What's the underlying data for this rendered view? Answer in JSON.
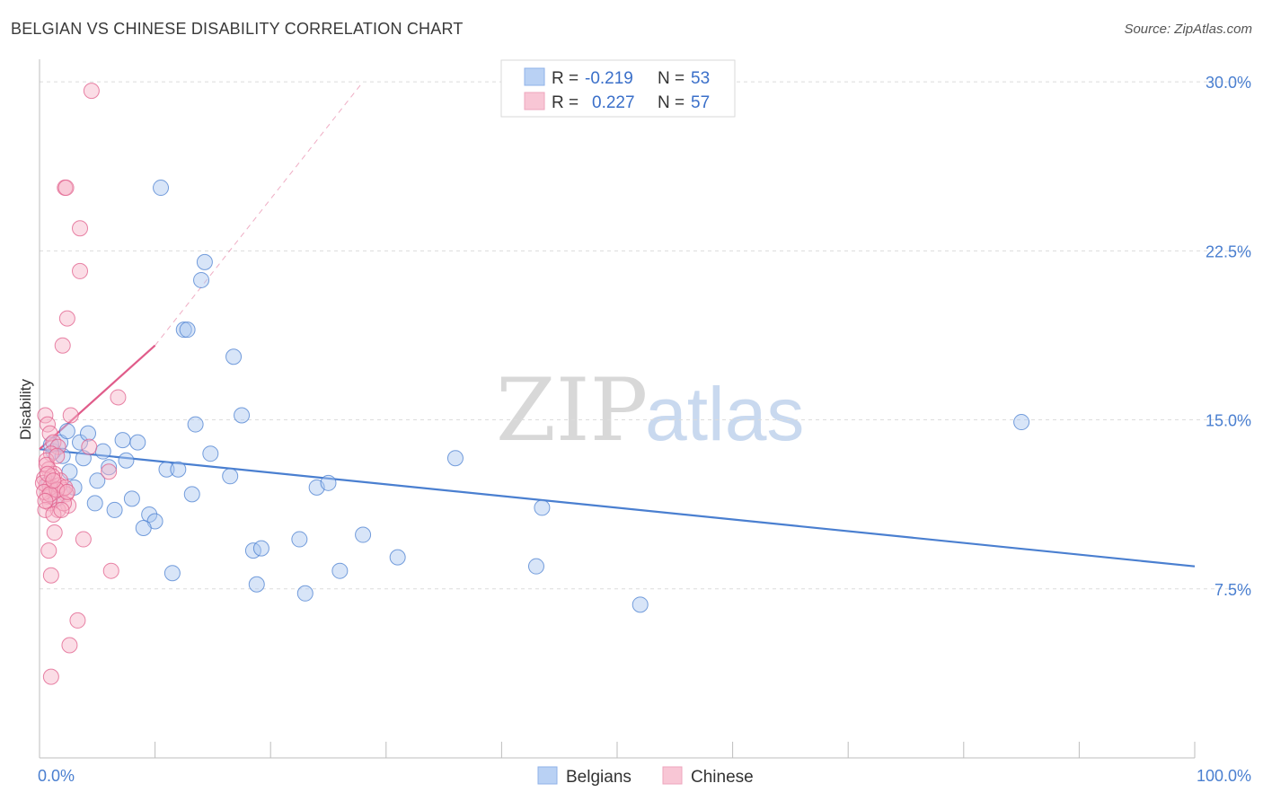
{
  "title": "BELGIAN VS CHINESE DISABILITY CORRELATION CHART",
  "source": "Source: ZipAtlas.com",
  "chart_data": {
    "type": "scatter",
    "ylabel": "Disability",
    "xlabel": "",
    "xlim": [
      0,
      100
    ],
    "ylim": [
      0,
      31
    ],
    "y_ticks": [
      {
        "value": 7.5,
        "label": "7.5%"
      },
      {
        "value": 15.0,
        "label": "15.0%"
      },
      {
        "value": 22.5,
        "label": "22.5%"
      },
      {
        "value": 30.0,
        "label": "30.0%"
      }
    ],
    "x_tick_labels": {
      "min": "0.0%",
      "max": "100.0%"
    },
    "grid": true,
    "legend_position": "top-center",
    "series": [
      {
        "name": "Belgians",
        "color": "#4a7fd0",
        "fill": "#a9c6f0",
        "r_label": "R =",
        "r_value": "-0.219",
        "n_label": "N =",
        "n_value": "53",
        "trend": {
          "x": [
            0,
            100
          ],
          "y": [
            13.7,
            8.5
          ],
          "dashed_to": null
        },
        "points": [
          [
            1.2,
            13.6
          ],
          [
            1.8,
            14.0
          ],
          [
            2.4,
            14.5
          ],
          [
            2.0,
            13.4
          ],
          [
            3.5,
            14.0
          ],
          [
            3.8,
            13.3
          ],
          [
            4.2,
            14.4
          ],
          [
            5.5,
            13.6
          ],
          [
            6.0,
            12.9
          ],
          [
            4.8,
            11.3
          ],
          [
            5.0,
            12.3
          ],
          [
            7.2,
            14.1
          ],
          [
            7.5,
            13.2
          ],
          [
            8.0,
            11.5
          ],
          [
            8.5,
            14.0
          ],
          [
            9.5,
            10.8
          ],
          [
            10.0,
            10.5
          ],
          [
            11.0,
            12.8
          ],
          [
            11.5,
            8.2
          ],
          [
            12.0,
            12.8
          ],
          [
            10.5,
            25.3
          ],
          [
            14.3,
            22.0
          ],
          [
            14.0,
            21.2
          ],
          [
            12.5,
            19.0
          ],
          [
            12.8,
            19.0
          ],
          [
            13.2,
            11.7
          ],
          [
            13.5,
            14.8
          ],
          [
            14.8,
            13.5
          ],
          [
            16.5,
            12.5
          ],
          [
            16.8,
            17.8
          ],
          [
            17.5,
            15.2
          ],
          [
            18.5,
            9.2
          ],
          [
            18.8,
            7.7
          ],
          [
            19.2,
            9.3
          ],
          [
            22.5,
            9.7
          ],
          [
            23.0,
            7.3
          ],
          [
            24.0,
            12.0
          ],
          [
            25.0,
            12.2
          ],
          [
            26.0,
            8.3
          ],
          [
            28.0,
            9.9
          ],
          [
            31.0,
            8.9
          ],
          [
            36.0,
            13.3
          ],
          [
            43.0,
            8.5
          ],
          [
            43.5,
            11.1
          ],
          [
            52.0,
            6.8
          ],
          [
            85.0,
            14.9
          ],
          [
            1.5,
            11.5
          ],
          [
            2.6,
            12.7
          ],
          [
            3.0,
            12.0
          ],
          [
            6.5,
            11.0
          ],
          [
            9.0,
            10.2
          ],
          [
            0.8,
            12.2
          ],
          [
            1.0,
            13.9
          ]
        ]
      },
      {
        "name": "Chinese",
        "color": "#e05c8a",
        "fill": "#f6b3c8",
        "r_label": "R =",
        "r_value": "0.227",
        "n_label": "N =",
        "n_value": "57",
        "trend": {
          "x": [
            0,
            10
          ],
          "y": [
            13.7,
            18.3
          ],
          "dashed_to": {
            "x": 28,
            "y": 30.0
          }
        },
        "points": [
          [
            4.5,
            29.6
          ],
          [
            2.2,
            25.3
          ],
          [
            2.3,
            25.3
          ],
          [
            3.5,
            23.5
          ],
          [
            3.5,
            21.6
          ],
          [
            2.4,
            19.5
          ],
          [
            2.0,
            18.3
          ],
          [
            6.8,
            16.0
          ],
          [
            0.5,
            15.2
          ],
          [
            2.7,
            15.2
          ],
          [
            0.7,
            14.8
          ],
          [
            0.9,
            14.4
          ],
          [
            1.2,
            14.0
          ],
          [
            1.6,
            13.8
          ],
          [
            4.3,
            13.8
          ],
          [
            1.0,
            13.5
          ],
          [
            0.6,
            13.2
          ],
          [
            0.8,
            12.8
          ],
          [
            1.3,
            12.6
          ],
          [
            6.0,
            12.7
          ],
          [
            0.4,
            12.4
          ],
          [
            1.8,
            12.3
          ],
          [
            0.6,
            12.1
          ],
          [
            1.1,
            11.9
          ],
          [
            2.0,
            11.9
          ],
          [
            2.3,
            11.7
          ],
          [
            0.7,
            11.6
          ],
          [
            1.4,
            11.5
          ],
          [
            0.9,
            11.3
          ],
          [
            2.5,
            11.2
          ],
          [
            1.6,
            11.0
          ],
          [
            0.5,
            11.0
          ],
          [
            1.2,
            10.8
          ],
          [
            3.8,
            9.7
          ],
          [
            0.8,
            9.2
          ],
          [
            1.0,
            8.1
          ],
          [
            6.2,
            8.3
          ],
          [
            3.3,
            6.1
          ],
          [
            2.6,
            5.0
          ],
          [
            1.0,
            3.6
          ],
          [
            1.3,
            10.0
          ],
          [
            0.9,
            12.0
          ],
          [
            1.7,
            12.1
          ],
          [
            2.1,
            11.3
          ],
          [
            0.6,
            13.0
          ],
          [
            1.5,
            13.4
          ],
          [
            0.3,
            12.2
          ],
          [
            1.1,
            12.5
          ],
          [
            0.4,
            11.8
          ],
          [
            2.2,
            12.0
          ],
          [
            1.9,
            11.0
          ],
          [
            0.7,
            12.6
          ],
          [
            1.5,
            11.9
          ],
          [
            0.9,
            11.7
          ],
          [
            1.2,
            12.3
          ],
          [
            2.4,
            11.8
          ],
          [
            0.5,
            11.4
          ]
        ]
      }
    ]
  }
}
